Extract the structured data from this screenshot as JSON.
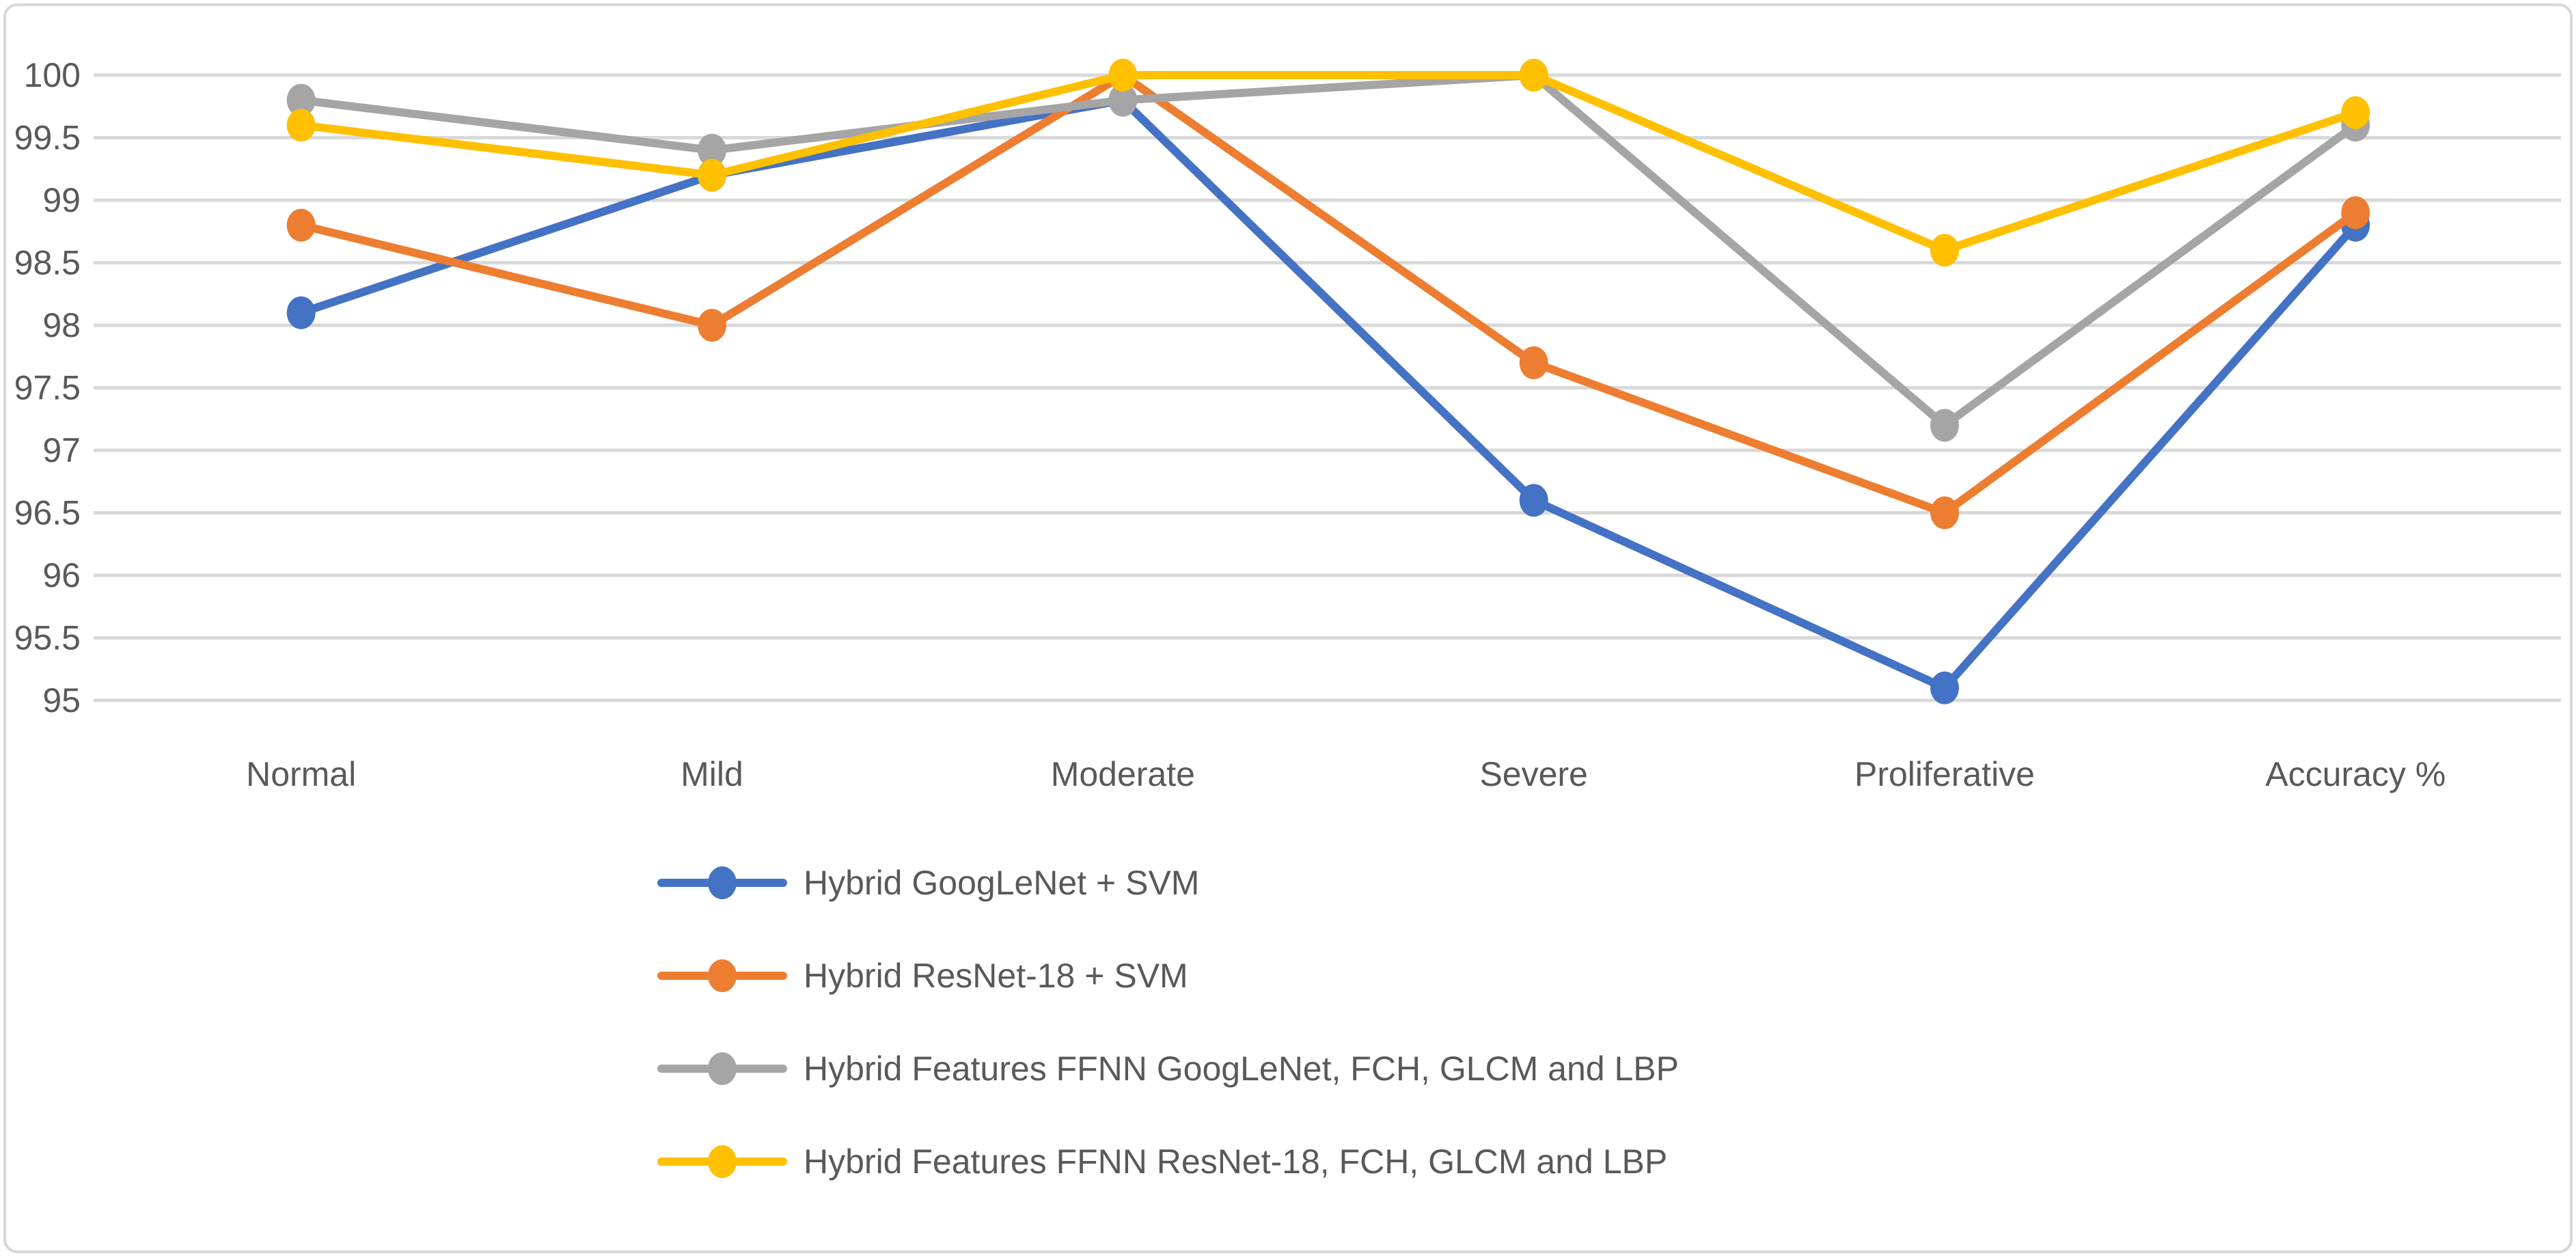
{
  "figure": {
    "background_color": "#FFFFFF",
    "frame_border_color": "#D8D8D8"
  },
  "chart_data": {
    "type": "line",
    "title": "",
    "xlabel": "",
    "ylabel": "",
    "categories": [
      "Normal",
      "Mild",
      "Moderate",
      "Severe",
      "Proliferative",
      "Accuracy %"
    ],
    "series": [
      {
        "name": "Hybrid GoogLeNet + SVM",
        "color": "#4472C4",
        "values": [
          98.1,
          99.2,
          99.8,
          96.6,
          95.1,
          98.8
        ]
      },
      {
        "name": "Hybrid ResNet-18 + SVM",
        "color": "#ED7D31",
        "values": [
          98.8,
          98.0,
          100,
          97.7,
          96.5,
          98.9
        ]
      },
      {
        "name": "Hybrid Features FFNN GoogLeNet, FCH, GLCM and LBP",
        "color": "#A5A5A5",
        "values": [
          99.8,
          99.4,
          99.8,
          100,
          97.2,
          99.6
        ]
      },
      {
        "name": "Hybrid Features FFNN ResNet-18, FCH, GLCM and LBP",
        "color": "#FFC000",
        "values": [
          99.6,
          99.2,
          100,
          100,
          98.6,
          99.7
        ]
      }
    ],
    "ylim": [
      95,
      100
    ],
    "ytick_step": 0.5,
    "ytick_labels": [
      "100",
      "99.5",
      "99",
      "98.5",
      "98",
      "97.5",
      "97",
      "96.5",
      "96",
      "95.5",
      "95"
    ],
    "grid": true,
    "gridline_color": "#D9D9D9",
    "axis_text_color": "#595959",
    "legend_position": "bottom-left",
    "marker_shape": "circle"
  }
}
